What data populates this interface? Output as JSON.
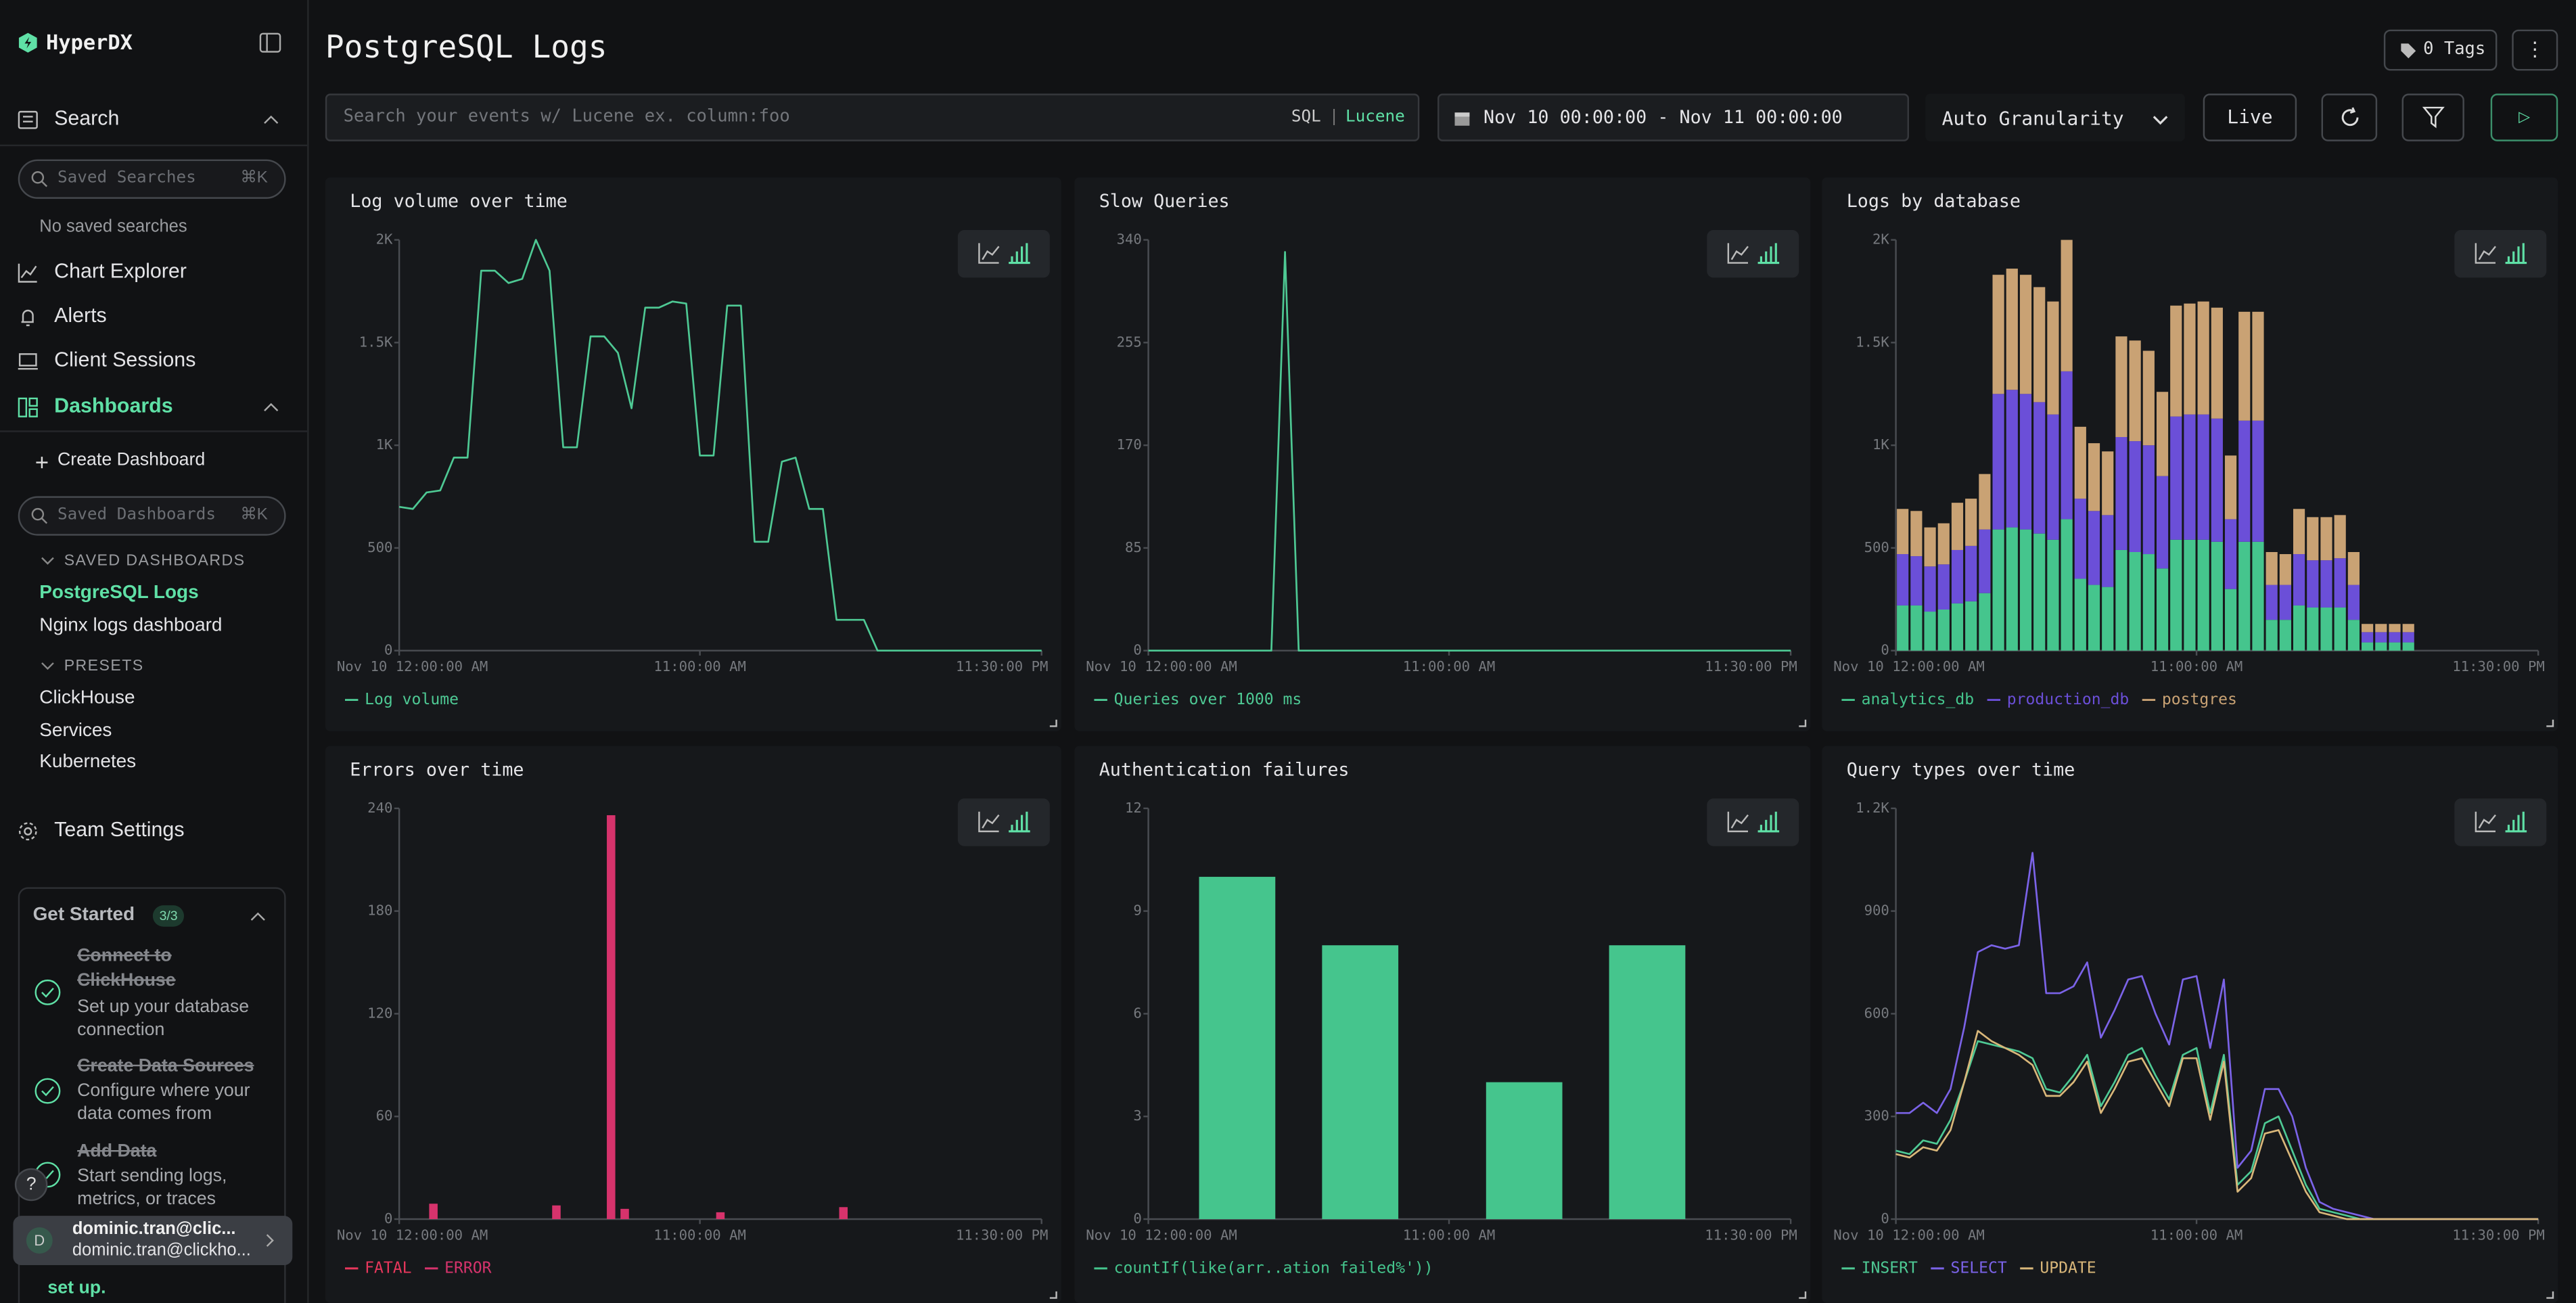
{
  "sidebar": {
    "brand": "HyperDX",
    "search": {
      "label": "Search",
      "placeholder": "Saved Searches",
      "shortcut": "⌘K",
      "empty": "No saved searches"
    },
    "links": [
      "Chart Explorer",
      "Alerts",
      "Client Sessions"
    ],
    "dashboards": {
      "label": "Dashboards",
      "create": "Create Dashboard",
      "placeholder": "Saved Dashboards",
      "shortcut": "⌘K",
      "saved_heading": "SAVED DASHBOARDS",
      "saved": [
        "PostgreSQL Logs",
        "Nginx logs dashboard"
      ],
      "presets_heading": "PRESETS",
      "presets": [
        "ClickHouse",
        "Services",
        "Kubernetes"
      ]
    },
    "team_settings": "Team Settings",
    "get_started": {
      "title": "Get Started",
      "progress": "3/3",
      "steps": [
        {
          "title": "Connect to ClickHouse",
          "description": "Set up your database connection"
        },
        {
          "title": "Create Data Sources",
          "description": "Configure where your data comes from"
        },
        {
          "title": "Add Data",
          "description": "Start sending logs, metrics, or traces"
        }
      ],
      "footer": "set up."
    },
    "help": "?",
    "user": {
      "initial": "D",
      "name": "dominic.tran@clic...",
      "email": "dominic.tran@clickho..."
    }
  },
  "header": {
    "title": "PostgreSQL Logs",
    "tags": "0 Tags",
    "menu": "⋮"
  },
  "toolbar": {
    "search_placeholder": "Search your events w/ Lucene ex. column:foo",
    "sql": "SQL",
    "separator": "|",
    "lucene": "Lucene",
    "date_range": "Nov 10 00:00:00 - Nov 11 00:00:00",
    "granularity": "Auto Granularity",
    "live": "Live",
    "run": "▷"
  },
  "chart_data": [
    {
      "type": "line",
      "title": "Log volume over time",
      "x": [
        0,
        0.5,
        1,
        1.5,
        2,
        2.5,
        3,
        3.5,
        4,
        4.5,
        5,
        5.5,
        6,
        6.5,
        7,
        7.5,
        8,
        8.5,
        9,
        9.5,
        10,
        10.5,
        11,
        11.5,
        12,
        12.5,
        13,
        13.5,
        14,
        14.5,
        15,
        15.5,
        16,
        16.5,
        17,
        17.5,
        18,
        18.5,
        19,
        19.5,
        20,
        20.5,
        21,
        21.5,
        22,
        22.5,
        23,
        23.5
      ],
      "xlim": [
        0,
        23.5
      ],
      "xticks": [
        {
          "value": 0,
          "label": "Nov 10 12:00:00 AM"
        },
        {
          "value": 11,
          "label": "11:00:00 AM"
        },
        {
          "value": 23.5,
          "label": "11:30:00 PM"
        }
      ],
      "ylim": [
        0,
        2000
      ],
      "yticks": [
        0,
        500,
        {
          "value": 1000,
          "label": "1K"
        },
        {
          "value": 1500,
          "label": "1.5K"
        },
        {
          "value": 2000,
          "label": "2K"
        }
      ],
      "grid": false,
      "series": [
        {
          "name": "Log volume",
          "color": "#4ec994",
          "values": [
            700,
            690,
            770,
            780,
            940,
            940,
            1850,
            1850,
            1790,
            1810,
            2000,
            1850,
            990,
            990,
            1530,
            1530,
            1450,
            1180,
            1670,
            1670,
            1700,
            1690,
            950,
            950,
            1680,
            1680,
            530,
            530,
            920,
            940,
            690,
            690,
            150,
            150,
            150,
            0,
            0,
            0,
            0,
            0,
            0,
            0,
            0,
            0,
            0,
            0,
            0,
            0
          ]
        }
      ]
    },
    {
      "type": "line",
      "title": "Slow Queries",
      "x": [
        0,
        0.5,
        1,
        1.5,
        2,
        2.5,
        3,
        3.5,
        4,
        4.5,
        5,
        5.5,
        6,
        6.5,
        7,
        7.5,
        8,
        8.5,
        9,
        9.5,
        10,
        10.5,
        11,
        11.5,
        12,
        12.5,
        13,
        13.5,
        14,
        14.5,
        15,
        15.5,
        16,
        16.5,
        17,
        17.5,
        18,
        18.5,
        19,
        19.5,
        20,
        20.5,
        21,
        21.5,
        22,
        22.5,
        23,
        23.5
      ],
      "xlim": [
        0,
        23.5
      ],
      "xticks": [
        {
          "value": 0,
          "label": "Nov 10 12:00:00 AM"
        },
        {
          "value": 11,
          "label": "11:00:00 AM"
        },
        {
          "value": 23.5,
          "label": "11:30:00 PM"
        }
      ],
      "ylim": [
        0,
        340
      ],
      "yticks": [
        0,
        85,
        170,
        255,
        340
      ],
      "grid": false,
      "series": [
        {
          "name": "Queries over 1000 ms",
          "color": "#4ec994",
          "values": [
            0,
            0,
            0,
            0,
            0,
            0,
            0,
            0,
            0,
            0,
            330,
            0,
            0,
            0,
            0,
            0,
            0,
            0,
            0,
            0,
            0,
            0,
            0,
            0,
            0,
            0,
            0,
            0,
            0,
            0,
            0,
            0,
            0,
            0,
            0,
            0,
            0,
            0,
            0,
            0,
            0,
            0,
            0,
            0,
            0,
            0,
            0,
            0
          ]
        }
      ]
    },
    {
      "type": "bar",
      "title": "Logs by database",
      "stacked": true,
      "x": [
        0,
        0.5,
        1,
        1.5,
        2,
        2.5,
        3,
        3.5,
        4,
        4.5,
        5,
        5.5,
        6,
        6.5,
        7,
        7.5,
        8,
        8.5,
        9,
        9.5,
        10,
        10.5,
        11,
        11.5,
        12,
        12.5,
        13,
        13.5,
        14,
        14.5,
        15,
        15.5,
        16,
        16.5,
        17,
        17.5,
        18,
        18.5,
        19,
        19.5,
        20,
        20.5,
        21,
        21.5,
        22,
        22.5,
        23,
        23.5
      ],
      "xlim": [
        0,
        23.5
      ],
      "xticks": [
        {
          "value": 0,
          "label": "Nov 10 12:00:00 AM"
        },
        {
          "value": 11,
          "label": "11:00:00 AM"
        },
        {
          "value": 23.5,
          "label": "11:30:00 PM"
        }
      ],
      "ylim": [
        0,
        2000
      ],
      "yticks": [
        0,
        500,
        {
          "value": 1000,
          "label": "1K"
        },
        {
          "value": 1500,
          "label": "1.5K"
        },
        {
          "value": 2000,
          "label": "2K"
        }
      ],
      "grid": false,
      "series": [
        {
          "name": "analytics_db",
          "color": "#45c58d",
          "values": [
            220,
            220,
            190,
            200,
            230,
            240,
            280,
            590,
            600,
            590,
            570,
            540,
            640,
            350,
            320,
            310,
            490,
            480,
            470,
            400,
            540,
            540,
            540,
            530,
            300,
            530,
            530,
            150,
            150,
            220,
            210,
            210,
            210,
            150,
            40,
            40,
            40,
            40,
            0,
            0,
            0,
            0,
            0,
            0,
            0,
            0,
            0,
            0
          ]
        },
        {
          "name": "production_db",
          "color": "#6b4fd8",
          "values": [
            250,
            240,
            220,
            220,
            260,
            270,
            310,
            660,
            670,
            660,
            640,
            610,
            720,
            390,
            360,
            350,
            550,
            540,
            530,
            450,
            600,
            610,
            610,
            600,
            340,
            590,
            590,
            170,
            170,
            250,
            230,
            230,
            240,
            170,
            50,
            50,
            50,
            50,
            0,
            0,
            0,
            0,
            0,
            0,
            0,
            0,
            0,
            0
          ]
        },
        {
          "name": "postgres",
          "color": "#c9a274",
          "values": [
            220,
            220,
            190,
            200,
            230,
            230,
            270,
            580,
            590,
            580,
            560,
            550,
            640,
            350,
            330,
            310,
            490,
            490,
            460,
            410,
            540,
            540,
            550,
            540,
            310,
            530,
            530,
            160,
            150,
            220,
            210,
            210,
            210,
            160,
            40,
            40,
            40,
            40,
            0,
            0,
            0,
            0,
            0,
            0,
            0,
            0,
            0,
            0
          ]
        }
      ]
    },
    {
      "type": "bar",
      "title": "Errors over time",
      "stacked": true,
      "x": [
        1,
        5.5,
        7.5,
        8,
        11.5,
        16
      ],
      "xlim": [
        0,
        23.5
      ],
      "xticks": [
        {
          "value": 0,
          "label": "Nov 10 12:00:00 AM"
        },
        {
          "value": 11,
          "label": "11:00:00 AM"
        },
        {
          "value": 23.5,
          "label": "11:30:00 PM"
        }
      ],
      "ylim": [
        0,
        240
      ],
      "yticks": [
        0,
        60,
        120,
        180,
        240
      ],
      "grid": false,
      "series": [
        {
          "name": "FATAL",
          "color": "#e8375c",
          "values": [
            0,
            0,
            0,
            0,
            0,
            0
          ]
        },
        {
          "name": "ERROR",
          "color": "#d6336c",
          "values": [
            9,
            8,
            236,
            6,
            4,
            7
          ]
        }
      ]
    },
    {
      "type": "bar",
      "title": "Authentication failures",
      "x": [
        1,
        5.5,
        11.5,
        16
      ],
      "xlim": [
        0,
        23.5
      ],
      "xticks": [
        {
          "value": 0,
          "label": "Nov 10 12:00:00 AM"
        },
        {
          "value": 11,
          "label": "11:00:00 AM"
        },
        {
          "value": 23.5,
          "label": "11:30:00 PM"
        }
      ],
      "ylim": [
        0,
        12
      ],
      "yticks": [
        0,
        3,
        6,
        9,
        12
      ],
      "grid": false,
      "series": [
        {
          "name": "countIf(like(arr..ation failed%'))",
          "color": "#45c58d",
          "values": [
            10,
            8,
            4,
            8
          ]
        }
      ]
    },
    {
      "type": "line",
      "title": "Query types over time",
      "x": [
        0,
        0.5,
        1,
        1.5,
        2,
        2.5,
        3,
        3.5,
        4,
        4.5,
        5,
        5.5,
        6,
        6.5,
        7,
        7.5,
        8,
        8.5,
        9,
        9.5,
        10,
        10.5,
        11,
        11.5,
        12,
        12.5,
        13,
        13.5,
        14,
        14.5,
        15,
        15.5,
        16,
        16.5,
        17,
        17.5,
        18,
        18.5,
        19,
        19.5,
        20,
        20.5,
        21,
        21.5,
        22,
        22.5,
        23,
        23.5
      ],
      "xlim": [
        0,
        23.5
      ],
      "xticks": [
        {
          "value": 0,
          "label": "Nov 10 12:00:00 AM"
        },
        {
          "value": 11,
          "label": "11:00:00 AM"
        },
        {
          "value": 23.5,
          "label": "11:30:00 PM"
        }
      ],
      "ylim": [
        0,
        1200
      ],
      "yticks": [
        0,
        300,
        600,
        900,
        {
          "value": 1200,
          "label": "1.2K"
        }
      ],
      "grid": false,
      "series": [
        {
          "name": "INSERT",
          "color": "#4ec994",
          "values": [
            200,
            190,
            230,
            220,
            290,
            400,
            520,
            510,
            500,
            490,
            470,
            380,
            370,
            420,
            480,
            330,
            400,
            480,
            500,
            420,
            350,
            480,
            500,
            310,
            480,
            100,
            140,
            280,
            300,
            200,
            100,
            30,
            20,
            10,
            0,
            0,
            0,
            0,
            0,
            0,
            0,
            0,
            0,
            0,
            0,
            0,
            0,
            0
          ]
        },
        {
          "name": "SELECT",
          "color": "#7b63e8",
          "values": [
            310,
            310,
            340,
            310,
            380,
            560,
            780,
            800,
            790,
            800,
            1070,
            660,
            660,
            680,
            750,
            530,
            610,
            700,
            710,
            600,
            510,
            700,
            710,
            500,
            700,
            150,
            200,
            380,
            380,
            300,
            150,
            50,
            30,
            20,
            10,
            0,
            0,
            0,
            0,
            0,
            0,
            0,
            0,
            0,
            0,
            0,
            0,
            0
          ]
        },
        {
          "name": "UPDATE",
          "color": "#d9b77a",
          "values": [
            190,
            180,
            210,
            200,
            260,
            400,
            550,
            520,
            500,
            480,
            450,
            360,
            360,
            400,
            460,
            310,
            380,
            460,
            470,
            400,
            330,
            470,
            470,
            290,
            460,
            80,
            120,
            250,
            260,
            170,
            80,
            20,
            10,
            0,
            0,
            0,
            0,
            0,
            0,
            0,
            0,
            0,
            0,
            0,
            0,
            0,
            0,
            0
          ]
        }
      ]
    }
  ]
}
